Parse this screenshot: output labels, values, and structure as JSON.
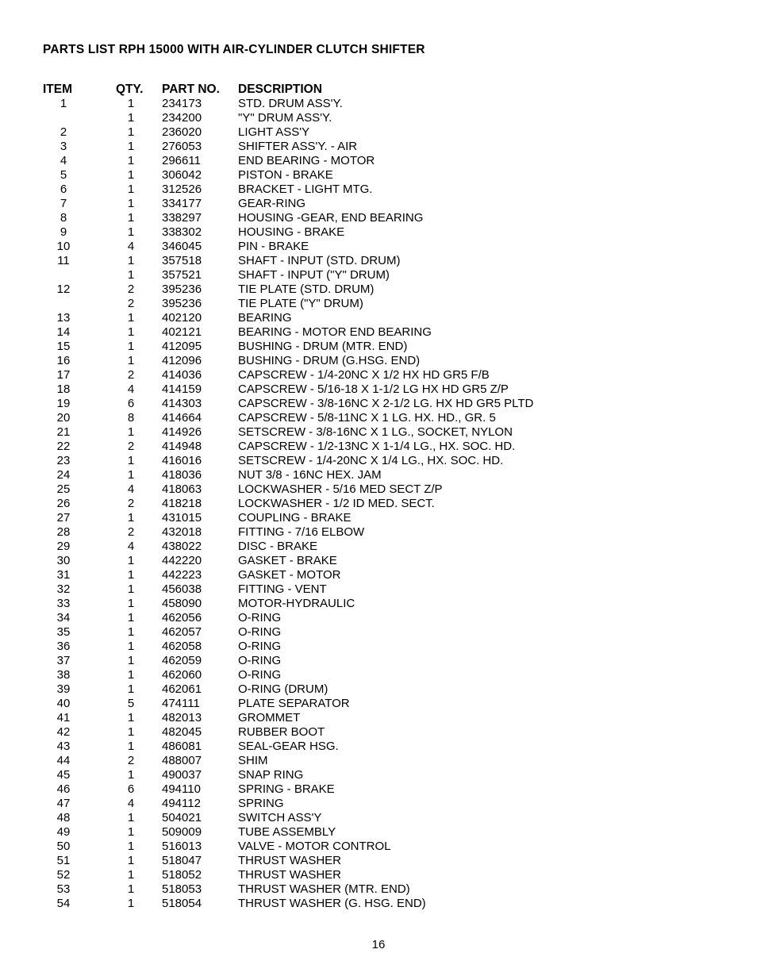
{
  "title": "PARTS LIST RPH 15000 WITH AIR-CYLINDER CLUTCH SHIFTER",
  "page_number": "16",
  "headers": {
    "item": "ITEM",
    "qty": "QTY.",
    "part": "PART NO.",
    "desc": "DESCRIPTION"
  },
  "rows": [
    {
      "item": "1",
      "qty": "1",
      "part": "234173",
      "desc": "STD. DRUM ASS'Y."
    },
    {
      "item": "",
      "qty": "1",
      "part": "234200",
      "desc": "\"Y\" DRUM ASS'Y."
    },
    {
      "item": "2",
      "qty": "1",
      "part": "236020",
      "desc": "LIGHT ASS'Y"
    },
    {
      "item": "3",
      "qty": "1",
      "part": "276053",
      "desc": "SHIFTER ASS'Y. - AIR"
    },
    {
      "item": "4",
      "qty": "1",
      "part": "296611",
      "desc": "END BEARING - MOTOR"
    },
    {
      "item": "5",
      "qty": "1",
      "part": "306042",
      "desc": "PISTON - BRAKE"
    },
    {
      "item": "6",
      "qty": "1",
      "part": "312526",
      "desc": "BRACKET - LIGHT MTG."
    },
    {
      "item": "7",
      "qty": "1",
      "part": "334177",
      "desc": "GEAR-RING"
    },
    {
      "item": "8",
      "qty": "1",
      "part": "338297",
      "desc": "HOUSING -GEAR, END BEARING"
    },
    {
      "item": "9",
      "qty": "1",
      "part": "338302",
      "desc": "HOUSING - BRAKE"
    },
    {
      "item": "10",
      "qty": "4",
      "part": "346045",
      "desc": "PIN - BRAKE"
    },
    {
      "item": "11",
      "qty": "1",
      "part": "357518",
      "desc": "SHAFT - INPUT (STD. DRUM)"
    },
    {
      "item": "",
      "qty": "1",
      "part": "357521",
      "desc": "SHAFT - INPUT (\"Y\" DRUM)"
    },
    {
      "item": "12",
      "qty": "2",
      "part": "395236",
      "desc": "TIE PLATE (STD. DRUM)"
    },
    {
      "item": "",
      "qty": "2",
      "part": "395236",
      "desc": "TIE PLATE (\"Y\" DRUM)"
    },
    {
      "item": "13",
      "qty": "1",
      "part": "402120",
      "desc": "BEARING"
    },
    {
      "item": "14",
      "qty": "1",
      "part": "402121",
      "desc": "BEARING - MOTOR END BEARING"
    },
    {
      "item": "15",
      "qty": "1",
      "part": "412095",
      "desc": "BUSHING - DRUM (MTR. END)"
    },
    {
      "item": "16",
      "qty": "1",
      "part": "412096",
      "desc": "BUSHING - DRUM (G.HSG. END)"
    },
    {
      "item": "17",
      "qty": "2",
      "part": "414036",
      "desc": "CAPSCREW - 1/4-20NC X 1/2 HX HD GR5 F/B"
    },
    {
      "item": "18",
      "qty": "4",
      "part": "414159",
      "desc": "CAPSCREW - 5/16-18 X 1-1/2 LG HX HD GR5 Z/P"
    },
    {
      "item": "19",
      "qty": "6",
      "part": "414303",
      "desc": "CAPSCREW - 3/8-16NC X 2-1/2 LG. HX HD GR5 PLTD"
    },
    {
      "item": "20",
      "qty": "8",
      "part": "414664",
      "desc": "CAPSCREW - 5/8-11NC X 1 LG. HX. HD., GR. 5"
    },
    {
      "item": "21",
      "qty": "1",
      "part": "414926",
      "desc": "SETSCREW - 3/8-16NC X 1 LG., SOCKET, NYLON"
    },
    {
      "item": "22",
      "qty": "2",
      "part": "414948",
      "desc": "CAPSCREW - 1/2-13NC X 1-1/4 LG., HX. SOC. HD."
    },
    {
      "item": "23",
      "qty": "1",
      "part": "416016",
      "desc": "SETSCREW - 1/4-20NC X 1/4 LG., HX. SOC. HD."
    },
    {
      "item": "24",
      "qty": "1",
      "part": "418036",
      "desc": "NUT 3/8 - 16NC HEX. JAM"
    },
    {
      "item": "25",
      "qty": "4",
      "part": "418063",
      "desc": "LOCKWASHER - 5/16 MED SECT Z/P"
    },
    {
      "item": "26",
      "qty": "2",
      "part": "418218",
      "desc": "LOCKWASHER - 1/2 ID MED. SECT."
    },
    {
      "item": "27",
      "qty": "1",
      "part": "431015",
      "desc": "COUPLING - BRAKE"
    },
    {
      "item": "28",
      "qty": "2",
      "part": "432018",
      "desc": "FITTING - 7/16 ELBOW"
    },
    {
      "item": "29",
      "qty": "4",
      "part": "438022",
      "desc": "DISC - BRAKE"
    },
    {
      "item": "30",
      "qty": "1",
      "part": "442220",
      "desc": "GASKET - BRAKE"
    },
    {
      "item": "31",
      "qty": "1",
      "part": "442223",
      "desc": "GASKET - MOTOR"
    },
    {
      "item": "32",
      "qty": "1",
      "part": "456038",
      "desc": "FITTING - VENT"
    },
    {
      "item": "33",
      "qty": "1",
      "part": "458090",
      "desc": "MOTOR-HYDRAULIC"
    },
    {
      "item": "34",
      "qty": "1",
      "part": "462056",
      "desc": "O-RING"
    },
    {
      "item": "35",
      "qty": "1",
      "part": "462057",
      "desc": "O-RING"
    },
    {
      "item": "36",
      "qty": "1",
      "part": "462058",
      "desc": "O-RING"
    },
    {
      "item": "37",
      "qty": "1",
      "part": "462059",
      "desc": "O-RING"
    },
    {
      "item": "38",
      "qty": "1",
      "part": "462060",
      "desc": "O-RING"
    },
    {
      "item": "39",
      "qty": "1",
      "part": "462061",
      "desc": "O-RING (DRUM)"
    },
    {
      "item": "40",
      "qty": "5",
      "part": "474111",
      "desc": "PLATE SEPARATOR"
    },
    {
      "item": "41",
      "qty": "1",
      "part": "482013",
      "desc": "GROMMET"
    },
    {
      "item": "42",
      "qty": "1",
      "part": "482045",
      "desc": "RUBBER BOOT"
    },
    {
      "item": "43",
      "qty": "1",
      "part": "486081",
      "desc": "SEAL-GEAR HSG."
    },
    {
      "item": "44",
      "qty": "2",
      "part": "488007",
      "desc": "SHIM"
    },
    {
      "item": "45",
      "qty": "1",
      "part": "490037",
      "desc": "SNAP RING"
    },
    {
      "item": "46",
      "qty": "6",
      "part": "494110",
      "desc": "SPRING - BRAKE"
    },
    {
      "item": "47",
      "qty": "4",
      "part": "494112",
      "desc": "SPRING"
    },
    {
      "item": "48",
      "qty": "1",
      "part": "504021",
      "desc": "SWITCH ASS'Y"
    },
    {
      "item": "49",
      "qty": "1",
      "part": "509009",
      "desc": "TUBE ASSEMBLY"
    },
    {
      "item": "50",
      "qty": "1",
      "part": "516013",
      "desc": "VALVE - MOTOR CONTROL"
    },
    {
      "item": "51",
      "qty": "1",
      "part": "518047",
      "desc": "THRUST WASHER"
    },
    {
      "item": "52",
      "qty": "1",
      "part": "518052",
      "desc": "THRUST WASHER"
    },
    {
      "item": "53",
      "qty": "1",
      "part": "518053",
      "desc": "THRUST WASHER (MTR. END)"
    },
    {
      "item": "54",
      "qty": "1",
      "part": "518054",
      "desc": "THRUST WASHER (G. HSG. END)"
    }
  ]
}
